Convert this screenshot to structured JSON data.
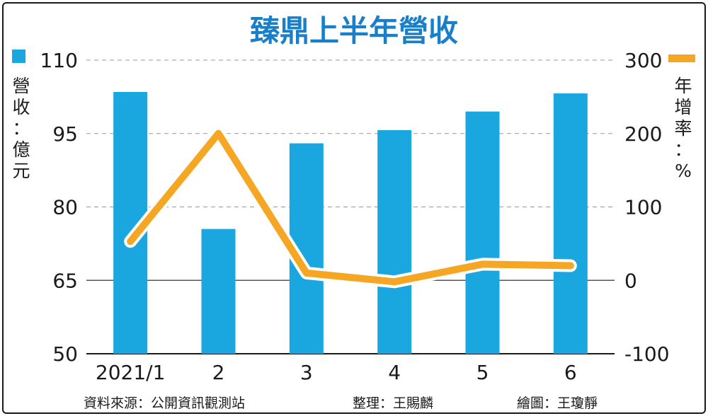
{
  "chart_data": {
    "type": "bar+line",
    "title": "臻鼎上半年營收",
    "categories": [
      "2021/1",
      "2",
      "3",
      "4",
      "5",
      "6"
    ],
    "left_axis": {
      "label": "營收：億元",
      "range": [
        50,
        110
      ],
      "ticks": [
        110,
        95,
        80,
        65,
        50
      ]
    },
    "right_axis": {
      "label": "年增率：%",
      "range": [
        -100,
        300
      ],
      "ticks": [
        300,
        200,
        100,
        0,
        -100
      ],
      "tick_labels": [
        "300",
        "200",
        "100",
        "0",
        "-100"
      ]
    },
    "bars": {
      "color": "#1aa7e0",
      "values": [
        103.5,
        75.5,
        93,
        95.7,
        99.5,
        103.2
      ]
    },
    "line": {
      "color": "#f5a623",
      "values": [
        53,
        200,
        10,
        -2,
        22,
        20
      ]
    },
    "grid": "dashed horizontal"
  },
  "footer": {
    "source": "資料來源：公開資訊觀測站",
    "editor": "整理：王賜麟",
    "artist": "繪圖：王瓊靜"
  }
}
